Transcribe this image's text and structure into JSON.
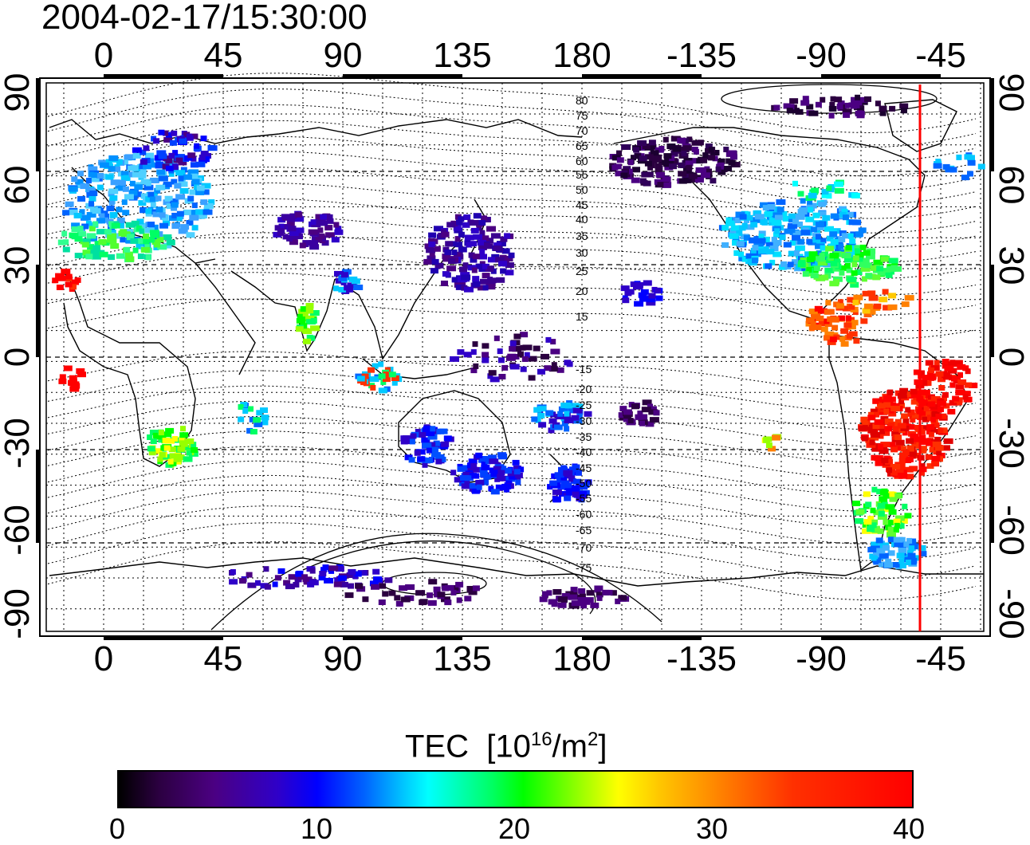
{
  "timestamp": "2004-02-17/15:30:00",
  "map": {
    "lon_ticks_top": [
      "0",
      "45",
      "90",
      "135",
      "180",
      "-135",
      "-90",
      "-45"
    ],
    "lon_ticks_bottom": [
      "0",
      "45",
      "90",
      "135",
      "180",
      "-135",
      "-90",
      "-45"
    ],
    "lat_ticks_left": [
      "90",
      "60",
      "30",
      "0",
      "-30",
      "-60",
      "-90"
    ],
    "lat_ticks_right": [
      "90",
      "60",
      "30",
      "0",
      "-30",
      "-60",
      "-90"
    ],
    "contour_labels": [
      "80",
      "75",
      "70",
      "65",
      "60",
      "55",
      "50",
      "45",
      "40",
      "35",
      "30",
      "25",
      "20",
      "15",
      "-15",
      "-20",
      "-25",
      "-30",
      "-35",
      "-40",
      "-45",
      "-50",
      "-55",
      "-60",
      "-65",
      "-70",
      "-75"
    ],
    "marker_line_color": "#ff0000"
  },
  "colorbar": {
    "title_main": "TEC",
    "title_unit_open": "[10",
    "title_unit_sup1": "16",
    "title_unit_mid": "/m",
    "title_unit_sup2": "2",
    "title_unit_close": "]",
    "ticks": [
      "0",
      "10",
      "20",
      "30",
      "40"
    ]
  }
}
